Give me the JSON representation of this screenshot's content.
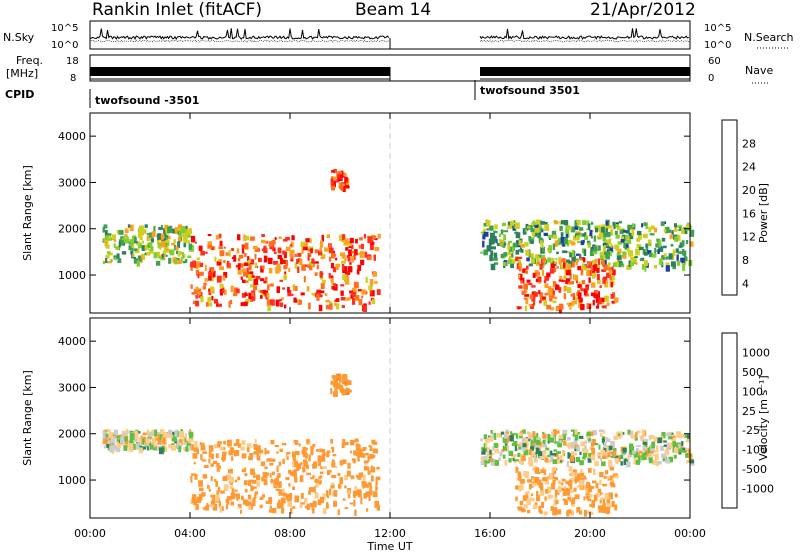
{
  "header": {
    "station": "Rankin Inlet (fitACF)",
    "beam": "Beam 14",
    "date": "21/Apr/2012"
  },
  "top_panels": {
    "nsky_label": "N.Sky",
    "nsky_ticks": [
      "10^5",
      "10^0"
    ],
    "nsearch_label": "N.Search",
    "nsearch_ticks": [
      "10^5",
      "10^0"
    ],
    "freq_label_1": "Freq.",
    "freq_label_2": "[MHz]",
    "freq_ticks": [
      "18",
      "8"
    ],
    "nave_label": "Nave",
    "nave_ticks": [
      "60",
      "0"
    ],
    "cpid_label": "CPID",
    "cpid_segments": [
      {
        "name": "twofsound -3501",
        "start_h": 0,
        "end_h": 12
      },
      {
        "name": "twofsound 3501",
        "start_h": 15.6,
        "end_h": 24
      }
    ]
  },
  "colors": {
    "power_scale": [
      "#0000ff",
      "#1f3fa0",
      "#2f7f5f",
      "#3fa04f",
      "#7fcf2f",
      "#cfcf1f",
      "#ff9f1f",
      "#ff6f1f",
      "#ff2f1f",
      "#ff0000"
    ],
    "velocity_scale": [
      "#0000ff",
      "#1f4fa0",
      "#2f7f5f",
      "#5fbf3f",
      "#cccccc",
      "#ffcc88",
      "#ff9933",
      "#ff6611",
      "#ff0000"
    ]
  },
  "chart_data": [
    {
      "type": "heatmap",
      "name": "power",
      "xlabel": "",
      "ylabel": "Slant Range [km]",
      "xlim": [
        0,
        24
      ],
      "ylim": [
        180,
        4500
      ],
      "xticks": [
        "00:00",
        "04:00",
        "08:00",
        "12:00",
        "16:00",
        "20:00",
        "00:00"
      ],
      "xtick_values": [
        0,
        4,
        8,
        12,
        16,
        20,
        24
      ],
      "yticks": [
        1000,
        2000,
        3000,
        4000
      ],
      "colorbar_label": "Power [dB]",
      "colorbar_ticks": [
        4,
        8,
        12,
        16,
        20,
        24,
        28
      ],
      "data_gaps": [
        [
          12,
          15.6
        ]
      ],
      "regions": [
        {
          "t": [
            0.5,
            4.0
          ],
          "r": [
            1300,
            2100
          ],
          "level": 14
        },
        {
          "t": [
            4.0,
            11.5
          ],
          "r": [
            350,
            1900
          ],
          "level": 24
        },
        {
          "t": [
            9.6,
            10.3
          ],
          "r": [
            2900,
            3300
          ],
          "level": 26
        },
        {
          "t": [
            15.6,
            24.0
          ],
          "r": [
            1200,
            2200
          ],
          "level": 12
        },
        {
          "t": [
            17.0,
            21.0
          ],
          "r": [
            300,
            1400
          ],
          "level": 24
        }
      ]
    },
    {
      "type": "heatmap",
      "name": "velocity",
      "xlabel": "Time UT",
      "ylabel": "Slant Range [km]",
      "xlim": [
        0,
        24
      ],
      "ylim": [
        180,
        4500
      ],
      "xticks": [
        "00:00",
        "04:00",
        "08:00",
        "12:00",
        "16:00",
        "20:00",
        "00:00"
      ],
      "xtick_values": [
        0,
        4,
        8,
        12,
        16,
        20,
        24
      ],
      "yticks": [
        1000,
        2000,
        3000,
        4000
      ],
      "colorbar_label": "Velocity [m s⁻¹]",
      "colorbar_ticks": [
        "1000",
        "500",
        "100",
        "25",
        "-25",
        "-100",
        "-500",
        "-1000"
      ],
      "data_gaps": [
        [
          12,
          15.6
        ]
      ],
      "regions": [
        {
          "t": [
            0.5,
            4.0
          ],
          "r": [
            1700,
            2100
          ],
          "level": 0
        },
        {
          "t": [
            4.0,
            11.5
          ],
          "r": [
            350,
            1900
          ],
          "level": -200
        },
        {
          "t": [
            9.6,
            10.3
          ],
          "r": [
            2900,
            3300
          ],
          "level": -400
        },
        {
          "t": [
            15.6,
            24.0
          ],
          "r": [
            1400,
            2100
          ],
          "level": 0
        },
        {
          "t": [
            17.0,
            21.0
          ],
          "r": [
            300,
            1300
          ],
          "level": -150
        }
      ]
    }
  ]
}
